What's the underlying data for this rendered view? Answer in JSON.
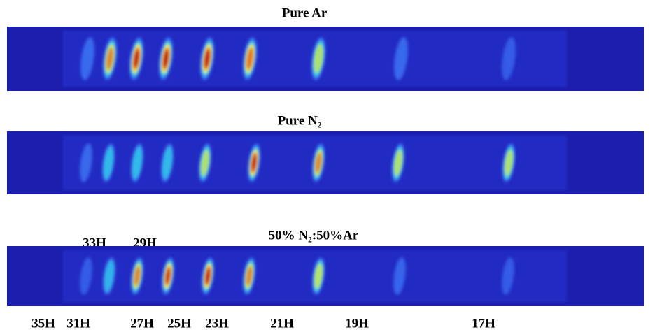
{
  "panels": [
    {
      "title": "Pure Ar"
    },
    {
      "title": "Pure N₂"
    },
    {
      "title": "50% N₂:50%Ar"
    }
  ],
  "top_labels": [
    "33H",
    "29H"
  ],
  "bottom_labels": [
    "35H",
    "31H",
    "27H",
    "25H",
    "23H",
    "21H",
    "19H",
    "17H"
  ]
}
